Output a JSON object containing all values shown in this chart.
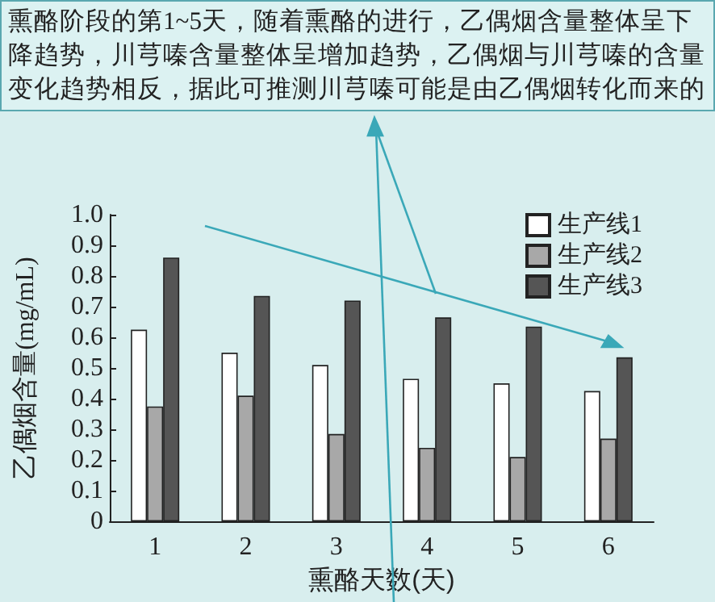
{
  "chart_data": {
    "type": "bar",
    "annotations": [
      "熏酪阶段的第1~5天，随着熏酪的进行，乙偶烟含量整体呈下降趋势，川芎嗪含量整体呈增加趋势，乙偶烟与川芎嗪的含量变化趋势相反，据此可推测川芎嗪可能是由乙偶烟转化而来的"
    ],
    "xlabel": "熏酪天数(天)",
    "ylabel": "乙偶烟含量(mg/mL)",
    "categories": [
      "1",
      "2",
      "3",
      "4",
      "5",
      "6"
    ],
    "series": [
      {
        "name": "生产线1",
        "color": "#ffffff",
        "values": [
          0.625,
          0.55,
          0.51,
          0.465,
          0.45,
          0.425
        ]
      },
      {
        "name": "生产线2",
        "color": "#a8a8a8",
        "values": [
          0.375,
          0.41,
          0.285,
          0.24,
          0.21,
          0.27
        ]
      },
      {
        "name": "生产线3",
        "color": "#555555",
        "values": [
          0.86,
          0.735,
          0.72,
          0.665,
          0.635,
          0.535
        ]
      }
    ],
    "ylim": [
      0,
      1
    ],
    "yticks": [
      0,
      0.1,
      0.2,
      0.3,
      0.4,
      0.5,
      0.6,
      0.7,
      0.8,
      0.9,
      {
        "value": 1,
        "label": "1.0"
      }
    ],
    "grid": false,
    "legend": "top right"
  }
}
